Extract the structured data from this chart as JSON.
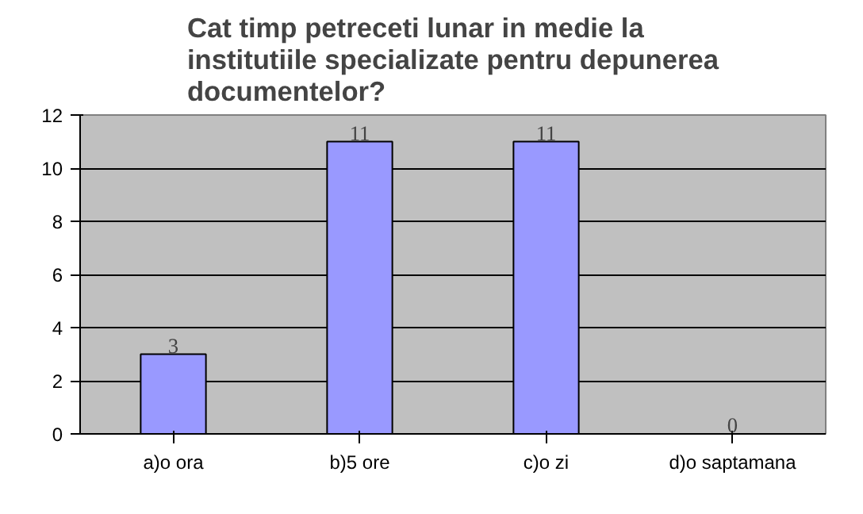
{
  "chart_data": {
    "type": "bar",
    "title": "Cat timp petreceti lunar in medie la institutiile specializate pentru depunerea documentelor?",
    "categories": [
      "a)o ora",
      "b)5 ore",
      "c)o zi",
      "d)o saptamana"
    ],
    "values": [
      3,
      11,
      11,
      0
    ],
    "color": "#9999ff",
    "ylim": [
      0,
      12
    ],
    "yticks": [
      0,
      2,
      4,
      6,
      8,
      10,
      12
    ],
    "grid": "y",
    "data_labels": true
  }
}
